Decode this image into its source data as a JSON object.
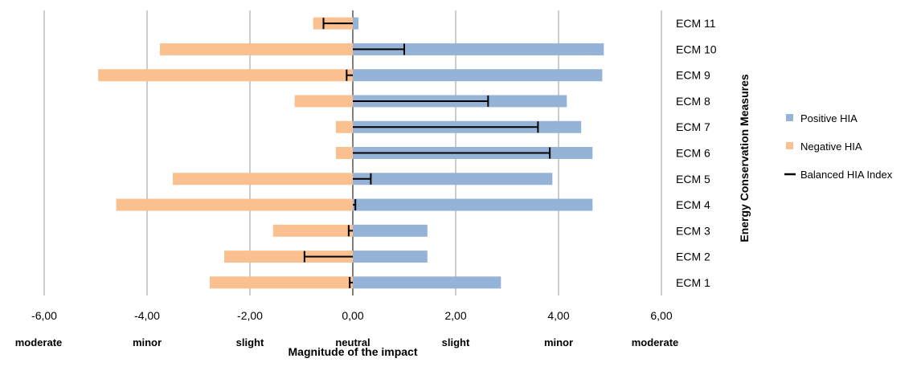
{
  "chart_data": {
    "type": "bar",
    "orientation": "horizontal",
    "title": "",
    "xlabel": "Magnitude of the impact",
    "ylabel": "Energy Conservation Measures",
    "xlim": [
      -6,
      6
    ],
    "x_ticks": [
      -6,
      -4,
      -2,
      0,
      2,
      4,
      6
    ],
    "x_tick_labels": [
      "-6,00",
      "-4,00",
      "-2,00",
      "0,00",
      "2,00",
      "4,00",
      "6,00"
    ],
    "x_qualitative_labels": [
      "moderate",
      "minor",
      "slight",
      "neutral",
      "slight",
      "minor",
      "moderate"
    ],
    "grid": "vertical",
    "legend_position": "right",
    "categories": [
      "ECM 1",
      "ECM 2",
      "ECM 3",
      "ECM 4",
      "ECM 5",
      "ECM 6",
      "ECM 7",
      "ECM 8",
      "ECM 9",
      "ECM 10",
      "ECM 11"
    ],
    "series": [
      {
        "name": "Positive HIA",
        "color": "#95b3d7",
        "values": [
          2.88,
          1.45,
          1.45,
          4.66,
          3.88,
          4.66,
          4.44,
          4.16,
          4.85,
          4.88,
          0.11
        ]
      },
      {
        "name": "Negative HIA",
        "color": "#fac090",
        "values": [
          -2.78,
          -2.5,
          -1.55,
          -4.6,
          -3.5,
          -0.33,
          -0.33,
          -1.13,
          -4.95,
          -3.75,
          -0.77
        ]
      },
      {
        "name": "Balanced HIA Index",
        "color": "#000000",
        "values": [
          -0.06,
          -0.94,
          -0.08,
          0.05,
          0.35,
          3.83,
          3.6,
          2.63,
          -0.12,
          1.0,
          -0.57
        ]
      }
    ]
  }
}
